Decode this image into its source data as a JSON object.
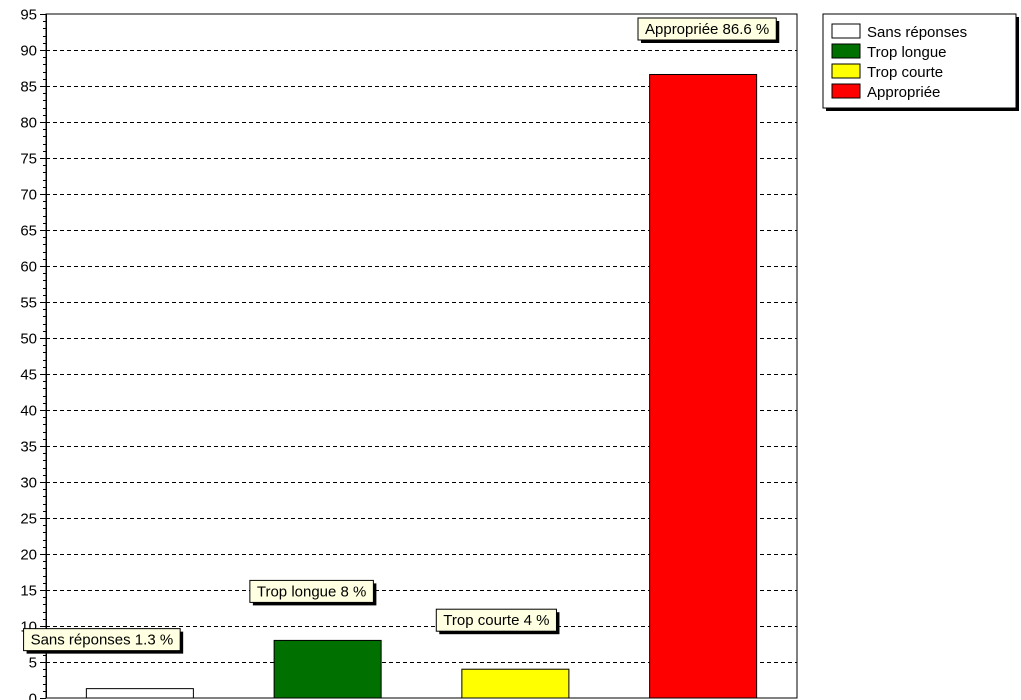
{
  "chart_data": {
    "type": "bar",
    "categories": [
      "Sans réponses",
      "Trop longue",
      "Trop courte",
      "Appropriée"
    ],
    "values": [
      1.3,
      8,
      4,
      86.6
    ],
    "colors": [
      "#ffffff",
      "#007000",
      "#ffff00",
      "#ff0000"
    ],
    "data_labels": [
      "Sans réponses 1.3 %",
      "Trop longue 8 %",
      "Trop courte 4 %",
      "Appropriée 86.6 %"
    ],
    "ylim": [
      0,
      95
    ],
    "yticks": [
      "0",
      "5",
      "10",
      "15",
      "20",
      "25",
      "30",
      "35",
      "40",
      "45",
      "50",
      "55",
      "60",
      "65",
      "70",
      "75",
      "80",
      "85",
      "90",
      "95"
    ],
    "grid": true,
    "legend": {
      "position": "top-right",
      "items": [
        {
          "label": "Sans réponses",
          "color": "#ffffff"
        },
        {
          "label": "Trop longue",
          "color": "#007000"
        },
        {
          "label": "Trop courte",
          "color": "#ffff00"
        },
        {
          "label": "Appropriée",
          "color": "#ff0000"
        }
      ]
    }
  }
}
